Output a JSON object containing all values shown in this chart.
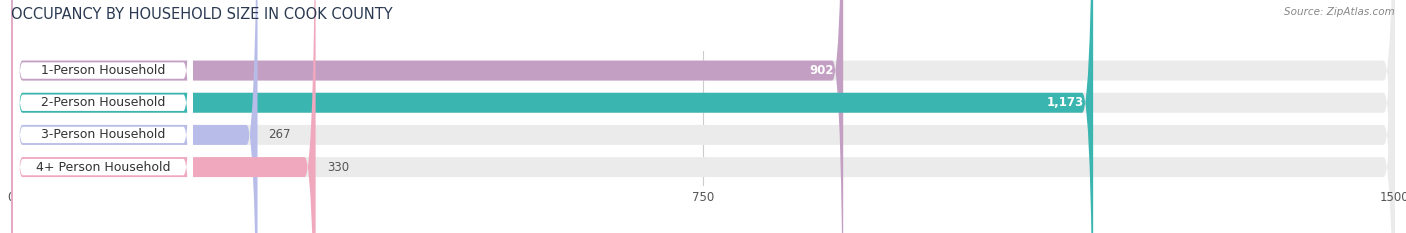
{
  "title": "OCCUPANCY BY HOUSEHOLD SIZE IN COOK COUNTY",
  "source": "Source: ZipAtlas.com",
  "categories": [
    "1-Person Household",
    "2-Person Household",
    "3-Person Household",
    "4+ Person Household"
  ],
  "values": [
    902,
    1173,
    267,
    330
  ],
  "bar_colors": [
    "#c49fc4",
    "#3ab5b0",
    "#b8bce8",
    "#f0a8be"
  ],
  "bar_labels": [
    "902",
    "1,173",
    "267",
    "330"
  ],
  "value_inside": [
    true,
    true,
    false,
    false
  ],
  "xlim": [
    0,
    1500
  ],
  "xticks": [
    0,
    750,
    1500
  ],
  "background_color": "#ffffff",
  "bar_bg_color": "#ebebeb",
  "title_fontsize": 10.5,
  "label_fontsize": 9,
  "value_fontsize": 8.5
}
